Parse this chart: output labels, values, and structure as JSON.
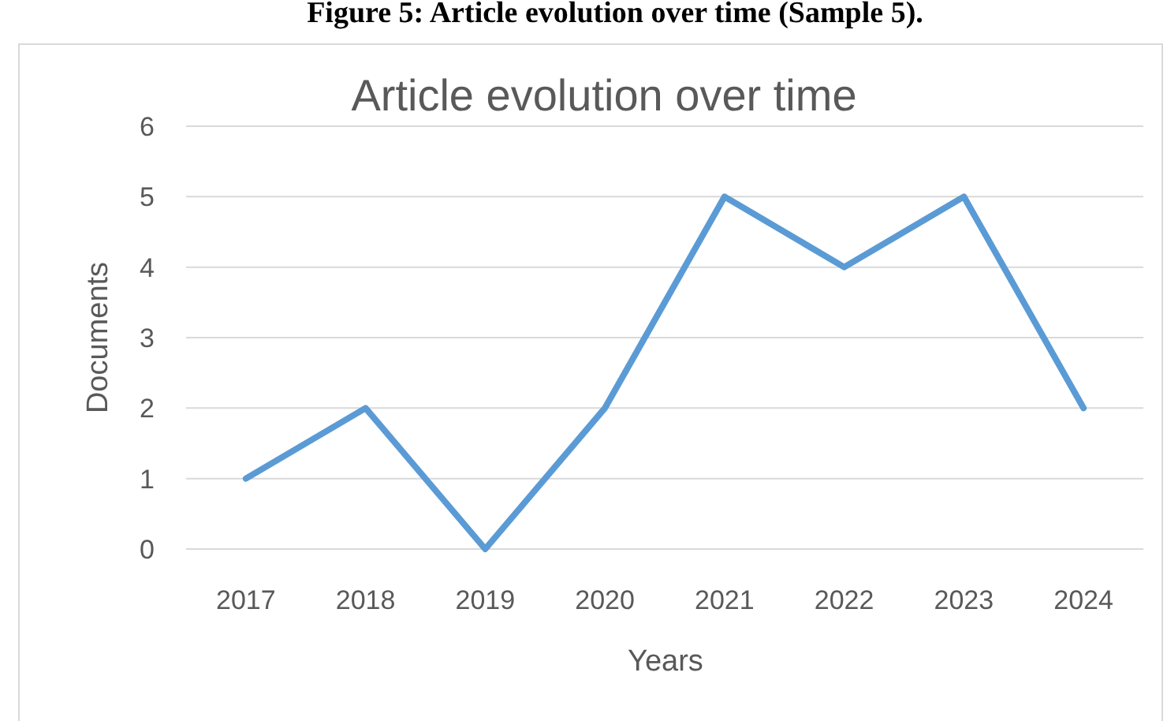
{
  "chart_data": {
    "type": "line",
    "title": "Article evolution over time",
    "xlabel": "Years",
    "ylabel": "Documents",
    "annotations": [
      "Figure 5: Article evolution over time (Sample 5)."
    ],
    "categories": [
      "2017",
      "2018",
      "2019",
      "2020",
      "2021",
      "2022",
      "2023",
      "2024"
    ],
    "series": [
      {
        "color": "#5b9bd5",
        "values": [
          1,
          2,
          0,
          2,
          5,
          4,
          5,
          2
        ]
      }
    ],
    "ylim": [
      0,
      6
    ],
    "yticks": [
      0,
      1,
      2,
      3,
      4,
      5,
      6
    ],
    "grid": "y"
  }
}
